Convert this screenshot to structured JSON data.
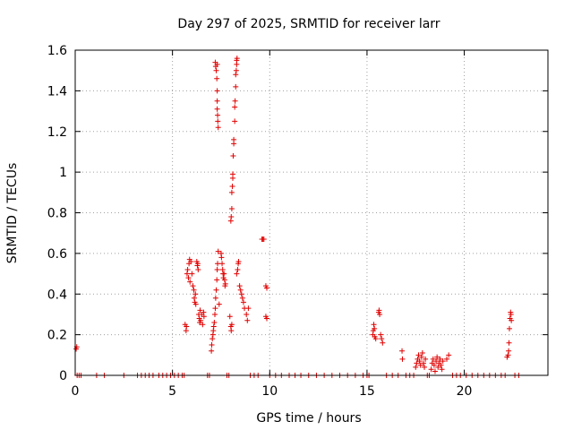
{
  "chart_data": {
    "type": "scatter",
    "title": "Day 297 of 2025, SRMTID for receiver larr",
    "xlabel": "GPS time / hours",
    "ylabel": "SRMTID / TECUs",
    "xlim": [
      0,
      24.3
    ],
    "ylim": [
      0,
      1.6
    ],
    "xticks": [
      0,
      5,
      10,
      15,
      20
    ],
    "xtick_labels": [
      "0",
      "5",
      "10",
      "15",
      "20"
    ],
    "yticks": [
      0,
      0.2,
      0.4,
      0.6,
      0.8,
      1,
      1.2,
      1.4,
      1.6
    ],
    "ytick_labels": [
      "0",
      "0.2",
      "0.4",
      "0.6",
      "0.8",
      "1",
      "1.2",
      "1.4",
      "1.6"
    ],
    "grid": true,
    "marker": "+",
    "marker_color": "#e00000",
    "series": [
      {
        "name": "SRMTID",
        "points": [
          [
            0.05,
            0.13
          ],
          [
            0.08,
            0.14
          ],
          [
            0.1,
            0.0
          ],
          [
            0.2,
            0.0
          ],
          [
            0.3,
            0.0
          ],
          [
            1.1,
            0.0
          ],
          [
            1.5,
            0.0
          ],
          [
            2.5,
            0.0
          ],
          [
            3.2,
            0.0
          ],
          [
            3.4,
            0.0
          ],
          [
            3.6,
            0.0
          ],
          [
            3.8,
            0.0
          ],
          [
            4.0,
            0.0
          ],
          [
            4.3,
            0.0
          ],
          [
            4.5,
            0.0
          ],
          [
            4.7,
            0.0
          ],
          [
            4.9,
            0.0
          ],
          [
            5.1,
            0.0
          ],
          [
            5.3,
            0.0
          ],
          [
            5.5,
            0.0
          ],
          [
            5.6,
            0.0
          ],
          [
            5.65,
            0.25
          ],
          [
            5.7,
            0.22
          ],
          [
            5.72,
            0.24
          ],
          [
            5.75,
            0.5
          ],
          [
            5.78,
            0.52
          ],
          [
            5.82,
            0.48
          ],
          [
            5.85,
            0.55
          ],
          [
            5.88,
            0.57
          ],
          [
            5.9,
            0.46
          ],
          [
            5.95,
            0.56
          ],
          [
            6.0,
            0.5
          ],
          [
            6.05,
            0.44
          ],
          [
            6.1,
            0.42
          ],
          [
            6.12,
            0.38
          ],
          [
            6.15,
            0.36
          ],
          [
            6.18,
            0.4
          ],
          [
            6.2,
            0.35
          ],
          [
            6.25,
            0.56
          ],
          [
            6.28,
            0.54
          ],
          [
            6.3,
            0.55
          ],
          [
            6.32,
            0.52
          ],
          [
            6.35,
            0.3
          ],
          [
            6.38,
            0.28
          ],
          [
            6.4,
            0.26
          ],
          [
            6.42,
            0.32
          ],
          [
            6.45,
            0.27
          ],
          [
            6.5,
            0.3
          ],
          [
            6.55,
            0.25
          ],
          [
            6.6,
            0.31
          ],
          [
            6.62,
            0.29
          ],
          [
            6.8,
            0.0
          ],
          [
            6.9,
            0.0
          ],
          [
            7.0,
            0.12
          ],
          [
            7.02,
            0.15
          ],
          [
            7.05,
            0.18
          ],
          [
            7.08,
            0.2
          ],
          [
            7.1,
            0.22
          ],
          [
            7.12,
            0.24
          ],
          [
            7.15,
            0.26
          ],
          [
            7.18,
            0.3
          ],
          [
            7.2,
            0.33
          ],
          [
            7.22,
            0.38
          ],
          [
            7.25,
            0.42
          ],
          [
            7.28,
            0.47
          ],
          [
            7.3,
            0.52
          ],
          [
            7.32,
            0.55
          ],
          [
            7.35,
            0.61
          ],
          [
            7.2,
            1.54
          ],
          [
            7.22,
            1.52
          ],
          [
            7.25,
            1.5
          ],
          [
            7.28,
            1.46
          ],
          [
            7.3,
            1.4
          ],
          [
            7.3,
            1.35
          ],
          [
            7.3,
            1.31
          ],
          [
            7.32,
            1.28
          ],
          [
            7.33,
            1.25
          ],
          [
            7.35,
            1.22
          ],
          [
            7.3,
            1.53
          ],
          [
            7.4,
            0.35
          ],
          [
            7.5,
            0.6
          ],
          [
            7.52,
            0.58
          ],
          [
            7.55,
            0.55
          ],
          [
            7.58,
            0.52
          ],
          [
            7.6,
            0.5
          ],
          [
            7.62,
            0.48
          ],
          [
            7.65,
            0.5
          ],
          [
            7.68,
            0.47
          ],
          [
            7.7,
            0.44
          ],
          [
            7.72,
            0.45
          ],
          [
            7.8,
            0.0
          ],
          [
            7.9,
            0.0
          ],
          [
            7.95,
            0.29
          ],
          [
            8.0,
            0.24
          ],
          [
            8.02,
            0.22
          ],
          [
            8.05,
            0.25
          ],
          [
            8.0,
            0.76
          ],
          [
            8.02,
            0.78
          ],
          [
            8.05,
            0.82
          ],
          [
            8.05,
            0.9
          ],
          [
            8.08,
            0.93
          ],
          [
            8.1,
            0.97
          ],
          [
            8.1,
            0.99
          ],
          [
            8.12,
            1.08
          ],
          [
            8.15,
            1.14
          ],
          [
            8.15,
            1.16
          ],
          [
            8.2,
            1.25
          ],
          [
            8.2,
            1.32
          ],
          [
            8.22,
            1.35
          ],
          [
            8.25,
            1.42
          ],
          [
            8.25,
            1.48
          ],
          [
            8.28,
            1.5
          ],
          [
            8.3,
            1.53
          ],
          [
            8.3,
            1.55
          ],
          [
            8.32,
            1.56
          ],
          [
            8.3,
            0.5
          ],
          [
            8.35,
            0.52
          ],
          [
            8.38,
            0.55
          ],
          [
            8.4,
            0.56
          ],
          [
            8.45,
            0.44
          ],
          [
            8.5,
            0.42
          ],
          [
            8.55,
            0.4
          ],
          [
            8.6,
            0.38
          ],
          [
            8.65,
            0.36
          ],
          [
            8.7,
            0.33
          ],
          [
            8.8,
            0.3
          ],
          [
            8.85,
            0.27
          ],
          [
            8.9,
            0.33
          ],
          [
            9.0,
            0.0
          ],
          [
            9.2,
            0.0
          ],
          [
            9.4,
            0.0
          ],
          [
            9.6,
            0.67
          ],
          [
            9.65,
            0.67
          ],
          [
            9.7,
            0.67
          ],
          [
            9.8,
            0.29
          ],
          [
            9.85,
            0.28
          ],
          [
            9.8,
            0.44
          ],
          [
            9.85,
            0.43
          ],
          [
            10.0,
            0.0
          ],
          [
            10.3,
            0.0
          ],
          [
            10.6,
            0.0
          ],
          [
            11.0,
            0.0
          ],
          [
            11.3,
            0.0
          ],
          [
            11.6,
            0.0
          ],
          [
            12.0,
            0.0
          ],
          [
            12.4,
            0.0
          ],
          [
            12.8,
            0.0
          ],
          [
            13.2,
            0.0
          ],
          [
            13.6,
            0.0
          ],
          [
            14.0,
            0.0
          ],
          [
            14.4,
            0.0
          ],
          [
            14.8,
            0.0
          ],
          [
            15.0,
            0.0
          ],
          [
            15.1,
            0.0
          ],
          [
            15.3,
            0.2
          ],
          [
            15.32,
            0.22
          ],
          [
            15.35,
            0.25
          ],
          [
            15.38,
            0.23
          ],
          [
            15.4,
            0.19
          ],
          [
            15.45,
            0.18
          ],
          [
            15.6,
            0.31
          ],
          [
            15.62,
            0.32
          ],
          [
            15.65,
            0.3
          ],
          [
            15.7,
            0.2
          ],
          [
            15.75,
            0.18
          ],
          [
            15.8,
            0.16
          ],
          [
            16.0,
            0.0
          ],
          [
            16.3,
            0.0
          ],
          [
            16.6,
            0.0
          ],
          [
            16.8,
            0.12
          ],
          [
            16.82,
            0.08
          ],
          [
            17.0,
            0.0
          ],
          [
            17.2,
            0.0
          ],
          [
            17.4,
            0.0
          ],
          [
            17.5,
            0.04
          ],
          [
            17.55,
            0.06
          ],
          [
            17.6,
            0.08
          ],
          [
            17.65,
            0.1
          ],
          [
            17.7,
            0.07
          ],
          [
            17.75,
            0.05
          ],
          [
            17.8,
            0.09
          ],
          [
            17.85,
            0.11
          ],
          [
            17.9,
            0.06
          ],
          [
            17.95,
            0.04
          ],
          [
            18.0,
            0.08
          ],
          [
            18.1,
            0.0
          ],
          [
            18.2,
            0.0
          ],
          [
            18.3,
            0.03
          ],
          [
            18.35,
            0.06
          ],
          [
            18.4,
            0.08
          ],
          [
            18.45,
            0.05
          ],
          [
            18.5,
            0.02
          ],
          [
            18.55,
            0.07
          ],
          [
            18.6,
            0.09
          ],
          [
            18.65,
            0.04
          ],
          [
            18.7,
            0.06
          ],
          [
            18.75,
            0.08
          ],
          [
            18.8,
            0.05
          ],
          [
            18.85,
            0.03
          ],
          [
            18.9,
            0.07
          ],
          [
            19.1,
            0.08
          ],
          [
            19.2,
            0.1
          ],
          [
            19.4,
            0.0
          ],
          [
            19.6,
            0.0
          ],
          [
            19.8,
            0.0
          ],
          [
            20.1,
            0.0
          ],
          [
            20.4,
            0.0
          ],
          [
            20.7,
            0.0
          ],
          [
            21.0,
            0.0
          ],
          [
            21.3,
            0.0
          ],
          [
            21.6,
            0.0
          ],
          [
            21.9,
            0.0
          ],
          [
            22.1,
            0.0
          ],
          [
            22.2,
            0.09
          ],
          [
            22.25,
            0.1
          ],
          [
            22.28,
            0.12
          ],
          [
            22.3,
            0.16
          ],
          [
            22.32,
            0.23
          ],
          [
            22.35,
            0.28
          ],
          [
            22.38,
            0.31
          ],
          [
            22.4,
            0.3
          ],
          [
            22.42,
            0.27
          ],
          [
            22.6,
            0.0
          ],
          [
            22.8,
            0.0
          ]
        ]
      }
    ]
  }
}
